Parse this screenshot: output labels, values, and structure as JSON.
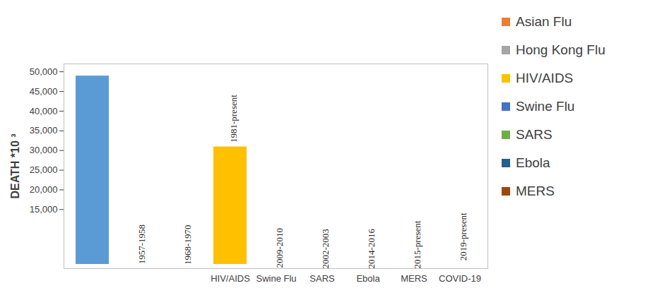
{
  "chart_data": {
    "type": "bar",
    "y_label": "DEATH *10 ³",
    "categories": [
      null,
      null,
      null,
      "HIV/AIDS",
      "Swine Flu",
      "SARS",
      "Ebola",
      "MERS",
      "COVID-19"
    ],
    "annotations": [
      null,
      "1957-1958",
      "1968-1970",
      "1981-present",
      "2009-2010",
      "2002-2003",
      "2014-2016",
      "2015-present",
      "2019-present"
    ],
    "series": [
      {
        "name": null,
        "color": "#5b9bd5",
        "values": [
          50000,
          null,
          null,
          null,
          null,
          null,
          null,
          null,
          null
        ]
      },
      {
        "name": "Asian Flu",
        "color": "#ed7d31",
        "values": [
          null,
          1100,
          null,
          null,
          null,
          null,
          null,
          null,
          null
        ]
      },
      {
        "name": "Hong Kong Flu",
        "color": "#a5a5a5",
        "values": [
          null,
          null,
          1000,
          null,
          null,
          null,
          null,
          null,
          null
        ]
      },
      {
        "name": "HIV/AIDS",
        "color": "#ffc000",
        "values": [
          null,
          null,
          null,
          32000,
          null,
          null,
          null,
          null,
          null
        ]
      },
      {
        "name": "Swine Flu",
        "color": "#4472c4",
        "values": [
          null,
          null,
          null,
          null,
          200,
          null,
          null,
          null,
          null
        ]
      },
      {
        "name": "SARS",
        "color": "#70ad47",
        "values": [
          null,
          null,
          null,
          null,
          null,
          1,
          null,
          null,
          null
        ]
      },
      {
        "name": "Ebola",
        "color": "#255e91",
        "values": [
          null,
          null,
          null,
          null,
          null,
          null,
          11,
          null,
          null
        ]
      },
      {
        "name": "MERS",
        "color": "#9e480e",
        "values": [
          null,
          null,
          null,
          null,
          null,
          null,
          null,
          1,
          null
        ]
      },
      {
        "name": null,
        "color": "#595959",
        "values": [
          null,
          null,
          null,
          null,
          null,
          null,
          null,
          null,
          2000
        ]
      }
    ],
    "ylim": [
      0,
      52000
    ],
    "yticks": [
      {
        "value": 15000,
        "label": "15,000"
      },
      {
        "value": 20000,
        "label": "20,000"
      },
      {
        "value": 25000,
        "label": "25,000"
      },
      {
        "value": 30000,
        "label": "30,000"
      },
      {
        "value": 35000,
        "label": "35,000"
      },
      {
        "value": 40000,
        "label": "40,000"
      },
      {
        "value": 45000,
        "label": "45,000"
      },
      {
        "value": 50000,
        "label": "50,000"
      }
    ],
    "grid": false,
    "legend": "right"
  }
}
